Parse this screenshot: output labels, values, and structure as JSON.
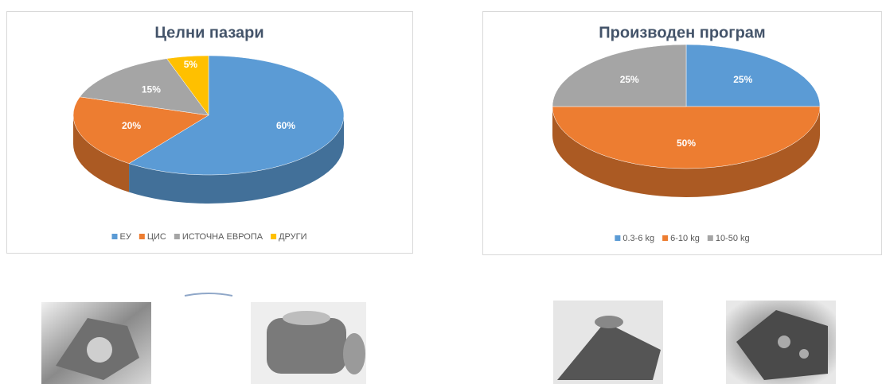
{
  "chart_data": [
    {
      "type": "pie",
      "title": "Целни пазари",
      "categories": [
        "ЕУ",
        "ЦИС",
        "ИСТОЧНА ЕВРОПА",
        "ДРУГИ"
      ],
      "values": [
        60,
        20,
        15,
        5
      ],
      "value_labels": [
        "60%",
        "20%",
        "15%",
        "5%"
      ],
      "colors": [
        "#5b9bd5",
        "#ed7d31",
        "#a5a5a5",
        "#ffc000"
      ],
      "legend": "bottom"
    },
    {
      "type": "pie",
      "title": "Производен програм",
      "categories": [
        "0.3-6 kg",
        "6-10 kg",
        "10-50 kg"
      ],
      "values": [
        25,
        50,
        25
      ],
      "value_labels": [
        "25%",
        "50%",
        "25%"
      ],
      "colors": [
        "#5b9bd5",
        "#ed7d31",
        "#a5a5a5"
      ],
      "legend": "bottom"
    }
  ]
}
